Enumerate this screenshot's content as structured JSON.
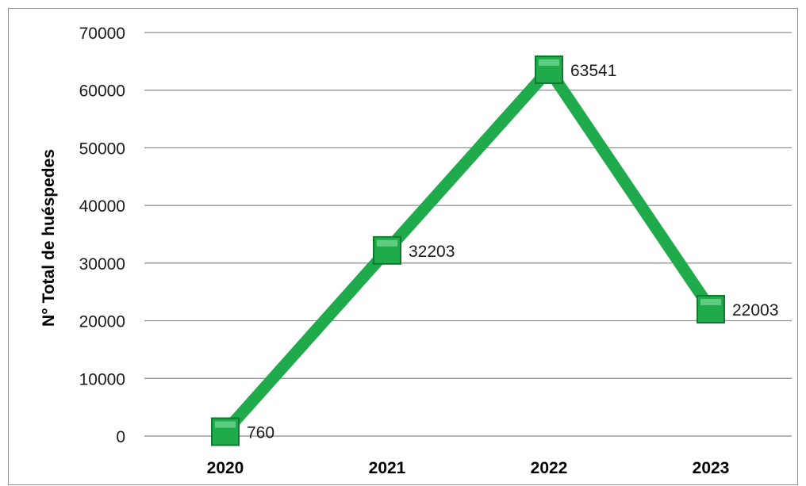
{
  "chart_data": {
    "type": "line",
    "categories": [
      "2020",
      "2021",
      "2022",
      "2023"
    ],
    "series": [
      {
        "values": [
          760,
          32203,
          63541,
          22003
        ]
      }
    ],
    "data_labels": [
      "760",
      "32203",
      "63541",
      "22003"
    ],
    "ylabel": "N° Total de huéspedes",
    "xlabel": "",
    "title": "",
    "ylim": [
      0,
      70000
    ],
    "yticks": [
      "0",
      "10000",
      "20000",
      "30000",
      "40000",
      "50000",
      "60000",
      "70000"
    ],
    "grid": "horizontal",
    "legend": "none",
    "colors": {
      "line": "#1faa4b",
      "marker": "#1faa4b",
      "marker_edge": "#0d7a2e",
      "grid": "#8c8c8c"
    }
  }
}
